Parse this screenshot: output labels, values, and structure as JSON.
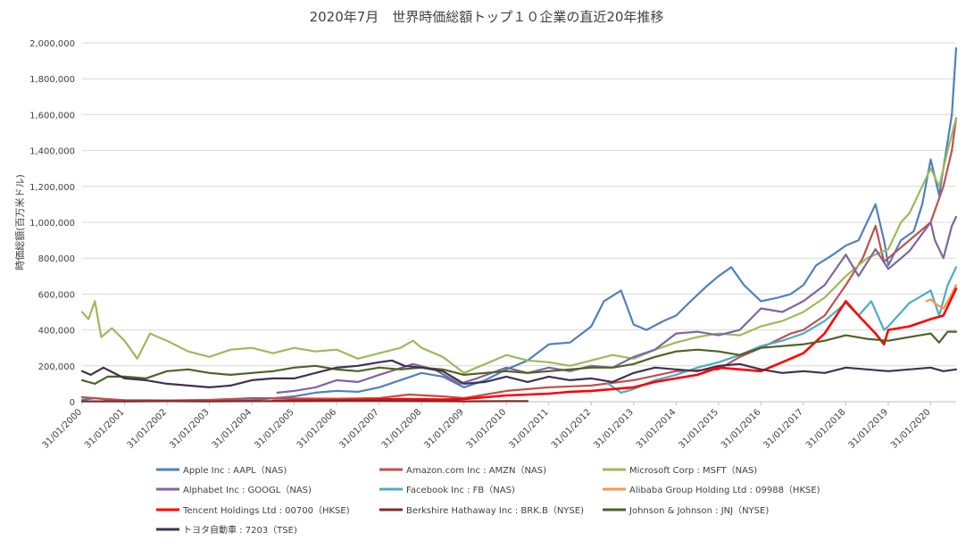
{
  "chart_data": {
    "type": "line",
    "title": "2020年7月　世界時価総額トップ１０企業の直近20年推移",
    "ylabel": "時価総額(百万米ドル)",
    "xlabel": "",
    "ylim": [
      0,
      2000000
    ],
    "yticks": [
      "0",
      "200,000",
      "400,000",
      "600,000",
      "800,000",
      "1,000,000",
      "1,200,000",
      "1,400,000",
      "1,600,000",
      "1,800,000",
      "2,000,000"
    ],
    "xlim": [
      2000.0,
      2020.6
    ],
    "xticks": [
      "31/01/2000",
      "31/01/2001",
      "31/01/2002",
      "31/01/2003",
      "31/01/2004",
      "31/01/2005",
      "31/01/2006",
      "31/01/2007",
      "31/01/2008",
      "31/01/2009",
      "31/01/2010",
      "31/01/2011",
      "31/01/2012",
      "31/01/2013",
      "31/01/2014",
      "31/01/2015",
      "31/01/2016",
      "31/01/2017",
      "31/01/2018",
      "31/01/2019",
      "31/01/2020"
    ],
    "grid": true,
    "legend_position": "bottom",
    "series": [
      {
        "name": "Apple Inc : AAPL（NAS)",
        "color": "#4f81bd",
        "x": [
          2000.0,
          2000.3,
          2000.6,
          2001.0,
          2002.0,
          2003.0,
          2004.0,
          2005.0,
          2005.5,
          2006.0,
          2006.5,
          2007.0,
          2007.5,
          2008.0,
          2008.5,
          2009.0,
          2009.5,
          2010.0,
          2010.5,
          2011.0,
          2011.5,
          2012.0,
          2012.3,
          2012.7,
          2013.0,
          2013.3,
          2013.7,
          2014.0,
          2014.3,
          2014.7,
          2015.0,
          2015.3,
          2015.6,
          2016.0,
          2016.4,
          2016.7,
          2017.0,
          2017.3,
          2017.7,
          2018.0,
          2018.3,
          2018.7,
          2018.9,
          2019.0,
          2019.3,
          2019.6,
          2019.8,
          2020.0,
          2020.2,
          2020.3,
          2020.5,
          2020.6
        ],
        "y": [
          10000,
          20000,
          12000,
          8000,
          7000,
          6000,
          9000,
          30000,
          50000,
          60000,
          55000,
          80000,
          120000,
          160000,
          140000,
          80000,
          120000,
          180000,
          230000,
          320000,
          330000,
          420000,
          560000,
          620000,
          430000,
          400000,
          450000,
          480000,
          550000,
          640000,
          700000,
          750000,
          650000,
          560000,
          580000,
          600000,
          650000,
          760000,
          820000,
          870000,
          900000,
          1100000,
          900000,
          760000,
          900000,
          950000,
          1100000,
          1350000,
          1150000,
          1300000,
          1600000,
          1970000
        ]
      },
      {
        "name": "Amazon.com Inc : AMZN（NAS)",
        "color": "#c0504d",
        "x": [
          2000.0,
          2001.0,
          2002.0,
          2003.0,
          2004.0,
          2005.0,
          2006.0,
          2007.0,
          2007.7,
          2008.5,
          2009.0,
          2009.5,
          2010.0,
          2011.0,
          2012.0,
          2013.0,
          2014.0,
          2015.0,
          2015.5,
          2016.0,
          2016.7,
          2017.0,
          2017.5,
          2018.0,
          2018.4,
          2018.7,
          2018.9,
          2019.0,
          2019.5,
          2020.0,
          2020.3,
          2020.5,
          2020.6
        ],
        "y": [
          25000,
          8000,
          7000,
          10000,
          20000,
          18000,
          17000,
          20000,
          40000,
          30000,
          20000,
          40000,
          60000,
          80000,
          90000,
          120000,
          170000,
          180000,
          250000,
          300000,
          380000,
          400000,
          480000,
          650000,
          800000,
          980000,
          780000,
          800000,
          900000,
          1000000,
          1200000,
          1400000,
          1580000
        ]
      },
      {
        "name": "Microsoft Corp : MSFT（NAS)",
        "color": "#9bbb59",
        "x": [
          2000.0,
          2000.15,
          2000.3,
          2000.45,
          2000.7,
          2001.0,
          2001.3,
          2001.6,
          2002.0,
          2002.5,
          2003.0,
          2003.5,
          2004.0,
          2004.5,
          2005.0,
          2005.5,
          2006.0,
          2006.5,
          2007.0,
          2007.5,
          2007.8,
          2008.0,
          2008.5,
          2009.0,
          2009.5,
          2010.0,
          2010.5,
          2011.0,
          2011.5,
          2012.0,
          2012.5,
          2013.0,
          2013.5,
          2014.0,
          2014.5,
          2015.0,
          2015.5,
          2016.0,
          2016.5,
          2017.0,
          2017.5,
          2018.0,
          2018.5,
          2019.0,
          2019.3,
          2019.5,
          2020.0,
          2020.2,
          2020.4,
          2020.6
        ],
        "y": [
          500000,
          460000,
          560000,
          360000,
          410000,
          340000,
          240000,
          380000,
          340000,
          280000,
          250000,
          290000,
          300000,
          270000,
          300000,
          280000,
          290000,
          240000,
          270000,
          300000,
          340000,
          300000,
          250000,
          160000,
          210000,
          260000,
          230000,
          220000,
          200000,
          230000,
          260000,
          240000,
          290000,
          330000,
          360000,
          380000,
          370000,
          420000,
          450000,
          500000,
          580000,
          700000,
          800000,
          850000,
          1000000,
          1050000,
          1300000,
          1200000,
          1400000,
          1580000
        ]
      },
      {
        "name": "Alphabet Inc : GOOGL（NAS)",
        "color": "#8064a2",
        "x": [
          2004.6,
          2005.0,
          2005.5,
          2006.0,
          2006.5,
          2007.0,
          2007.8,
          2008.3,
          2008.9,
          2009.3,
          2010.0,
          2010.5,
          2011.0,
          2011.5,
          2012.0,
          2012.5,
          2013.0,
          2013.5,
          2014.0,
          2014.5,
          2015.0,
          2015.5,
          2016.0,
          2016.5,
          2017.0,
          2017.5,
          2018.0,
          2018.3,
          2018.7,
          2019.0,
          2019.5,
          2020.0,
          2020.1,
          2020.3,
          2020.5,
          2020.6
        ],
        "y": [
          50000,
          60000,
          80000,
          120000,
          110000,
          150000,
          210000,
          180000,
          100000,
          130000,
          190000,
          160000,
          190000,
          170000,
          200000,
          190000,
          250000,
          290000,
          380000,
          390000,
          370000,
          400000,
          520000,
          500000,
          560000,
          650000,
          820000,
          700000,
          850000,
          740000,
          840000,
          1000000,
          900000,
          800000,
          980000,
          1030000
        ]
      },
      {
        "name": "Facebook Inc : FB（NAS)",
        "color": "#4bacc6",
        "x": [
          2012.4,
          2012.7,
          2013.0,
          2013.5,
          2014.0,
          2014.5,
          2015.0,
          2015.5,
          2016.0,
          2016.5,
          2017.0,
          2017.5,
          2018.0,
          2018.3,
          2018.6,
          2018.9,
          2019.0,
          2019.5,
          2020.0,
          2020.2,
          2020.4,
          2020.6
        ],
        "y": [
          100000,
          50000,
          70000,
          120000,
          150000,
          190000,
          220000,
          260000,
          310000,
          340000,
          380000,
          450000,
          550000,
          480000,
          560000,
          400000,
          420000,
          550000,
          620000,
          480000,
          650000,
          750000
        ]
      },
      {
        "name": "Alibaba Group Holding Ltd : 09988（HKSE)",
        "color": "#f79646",
        "x": [
          2019.9,
          2020.0,
          2020.15,
          2020.3,
          2020.45,
          2020.6
        ],
        "y": [
          560000,
          570000,
          540000,
          520000,
          580000,
          650000
        ]
      },
      {
        "name": "Tencent Holdings Ltd : 00700（HKSE)",
        "color": "#ff0000",
        "x": [
          2004.5,
          2005.5,
          2006.5,
          2007.5,
          2008.5,
          2009.0,
          2009.5,
          2010.0,
          2010.5,
          2011.0,
          2011.5,
          2012.0,
          2012.5,
          2013.0,
          2013.5,
          2014.0,
          2014.5,
          2015.0,
          2015.5,
          2016.0,
          2016.5,
          2017.0,
          2017.5,
          2018.0,
          2018.3,
          2018.7,
          2018.9,
          2019.0,
          2019.5,
          2020.0,
          2020.3,
          2020.5,
          2020.6
        ],
        "y": [
          5000,
          8000,
          10000,
          15000,
          12000,
          15000,
          25000,
          35000,
          40000,
          45000,
          55000,
          60000,
          70000,
          80000,
          110000,
          130000,
          150000,
          190000,
          180000,
          170000,
          220000,
          270000,
          380000,
          560000,
          480000,
          380000,
          320000,
          400000,
          420000,
          460000,
          480000,
          580000,
          630000
        ]
      },
      {
        "name": "Berkshire Hathaway Inc : BRK.B（NYSE)",
        "color": "#7b2c2c",
        "x": [
          2000.0,
          2001.0,
          2002.0,
          2003.0,
          2004.0,
          2005.0,
          2006.0,
          2007.0,
          2008.0,
          2009.0,
          2010.0,
          2010.5
        ],
        "y": [
          2000,
          2000,
          3000,
          2000,
          3000,
          3000,
          4000,
          4000,
          3000,
          2000,
          3000,
          3000
        ]
      },
      {
        "name": "Johnson & Johnson : JNJ（NYSE)",
        "color": "#4f6228",
        "x": [
          2000.0,
          2000.3,
          2000.6,
          2001.0,
          2001.5,
          2002.0,
          2002.5,
          2003.0,
          2003.5,
          2004.0,
          2004.5,
          2005.0,
          2005.5,
          2006.0,
          2006.5,
          2007.0,
          2007.5,
          2008.0,
          2008.5,
          2009.0,
          2009.5,
          2010.0,
          2010.5,
          2011.0,
          2011.5,
          2012.0,
          2012.5,
          2013.0,
          2013.5,
          2014.0,
          2014.5,
          2015.0,
          2015.5,
          2016.0,
          2016.5,
          2017.0,
          2017.5,
          2018.0,
          2018.5,
          2019.0,
          2019.5,
          2020.0,
          2020.2,
          2020.4,
          2020.6
        ],
        "y": [
          120000,
          100000,
          140000,
          140000,
          130000,
          170000,
          180000,
          160000,
          150000,
          160000,
          170000,
          190000,
          200000,
          180000,
          170000,
          190000,
          180000,
          190000,
          180000,
          150000,
          160000,
          170000,
          160000,
          170000,
          180000,
          190000,
          190000,
          210000,
          250000,
          280000,
          290000,
          280000,
          260000,
          300000,
          310000,
          320000,
          340000,
          370000,
          350000,
          340000,
          360000,
          380000,
          330000,
          390000,
          390000
        ]
      },
      {
        "name": "トヨタ自動車 : 7203（TSE)",
        "color": "#403151",
        "x": [
          2000.0,
          2000.2,
          2000.5,
          2001.0,
          2001.5,
          2002.0,
          2002.5,
          2003.0,
          2003.5,
          2004.0,
          2004.5,
          2005.0,
          2005.5,
          2006.0,
          2006.5,
          2007.0,
          2007.3,
          2007.6,
          2008.0,
          2008.5,
          2009.0,
          2009.5,
          2010.0,
          2010.5,
          2011.0,
          2011.5,
          2012.0,
          2012.5,
          2013.0,
          2013.5,
          2014.0,
          2014.5,
          2015.0,
          2015.5,
          2016.0,
          2016.5,
          2017.0,
          2017.5,
          2018.0,
          2018.5,
          2019.0,
          2019.5,
          2020.0,
          2020.3,
          2020.6
        ],
        "y": [
          170000,
          150000,
          190000,
          130000,
          120000,
          100000,
          90000,
          80000,
          90000,
          120000,
          130000,
          130000,
          160000,
          190000,
          200000,
          220000,
          230000,
          200000,
          190000,
          170000,
          100000,
          110000,
          140000,
          110000,
          140000,
          120000,
          130000,
          110000,
          160000,
          190000,
          180000,
          170000,
          200000,
          210000,
          180000,
          160000,
          170000,
          160000,
          190000,
          180000,
          170000,
          180000,
          190000,
          170000,
          180000
        ]
      }
    ]
  }
}
